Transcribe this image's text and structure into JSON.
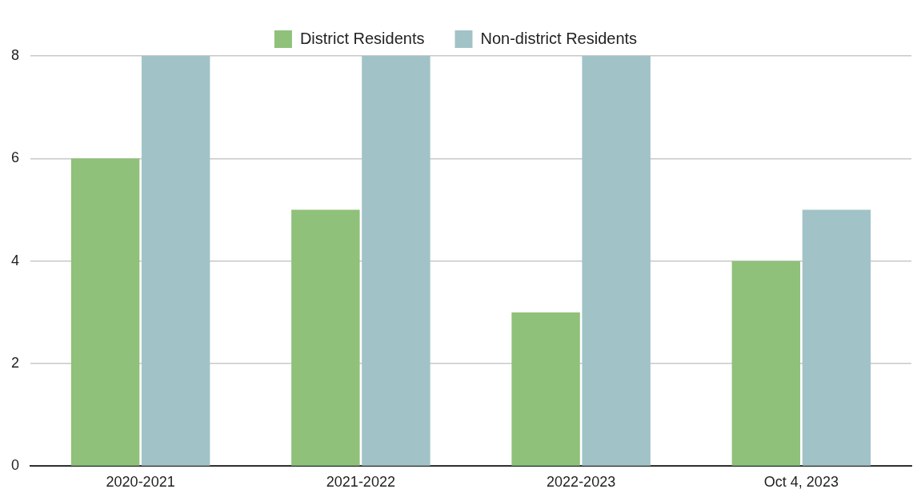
{
  "chart_data": {
    "type": "bar",
    "categories": [
      "2020-2021",
      "2021-2022",
      "2022-2023",
      "Oct 4, 2023"
    ],
    "series": [
      {
        "name": "District Residents",
        "color": "#8fc17a",
        "values": [
          6,
          5,
          3,
          4
        ]
      },
      {
        "name": "Non-district Residents",
        "color": "#a1c3c7",
        "values": [
          8,
          8,
          8,
          5
        ]
      }
    ],
    "ylim": [
      0,
      8
    ],
    "yticks": [
      0,
      2,
      4,
      6,
      8
    ],
    "grid": "y",
    "legend": "top"
  }
}
